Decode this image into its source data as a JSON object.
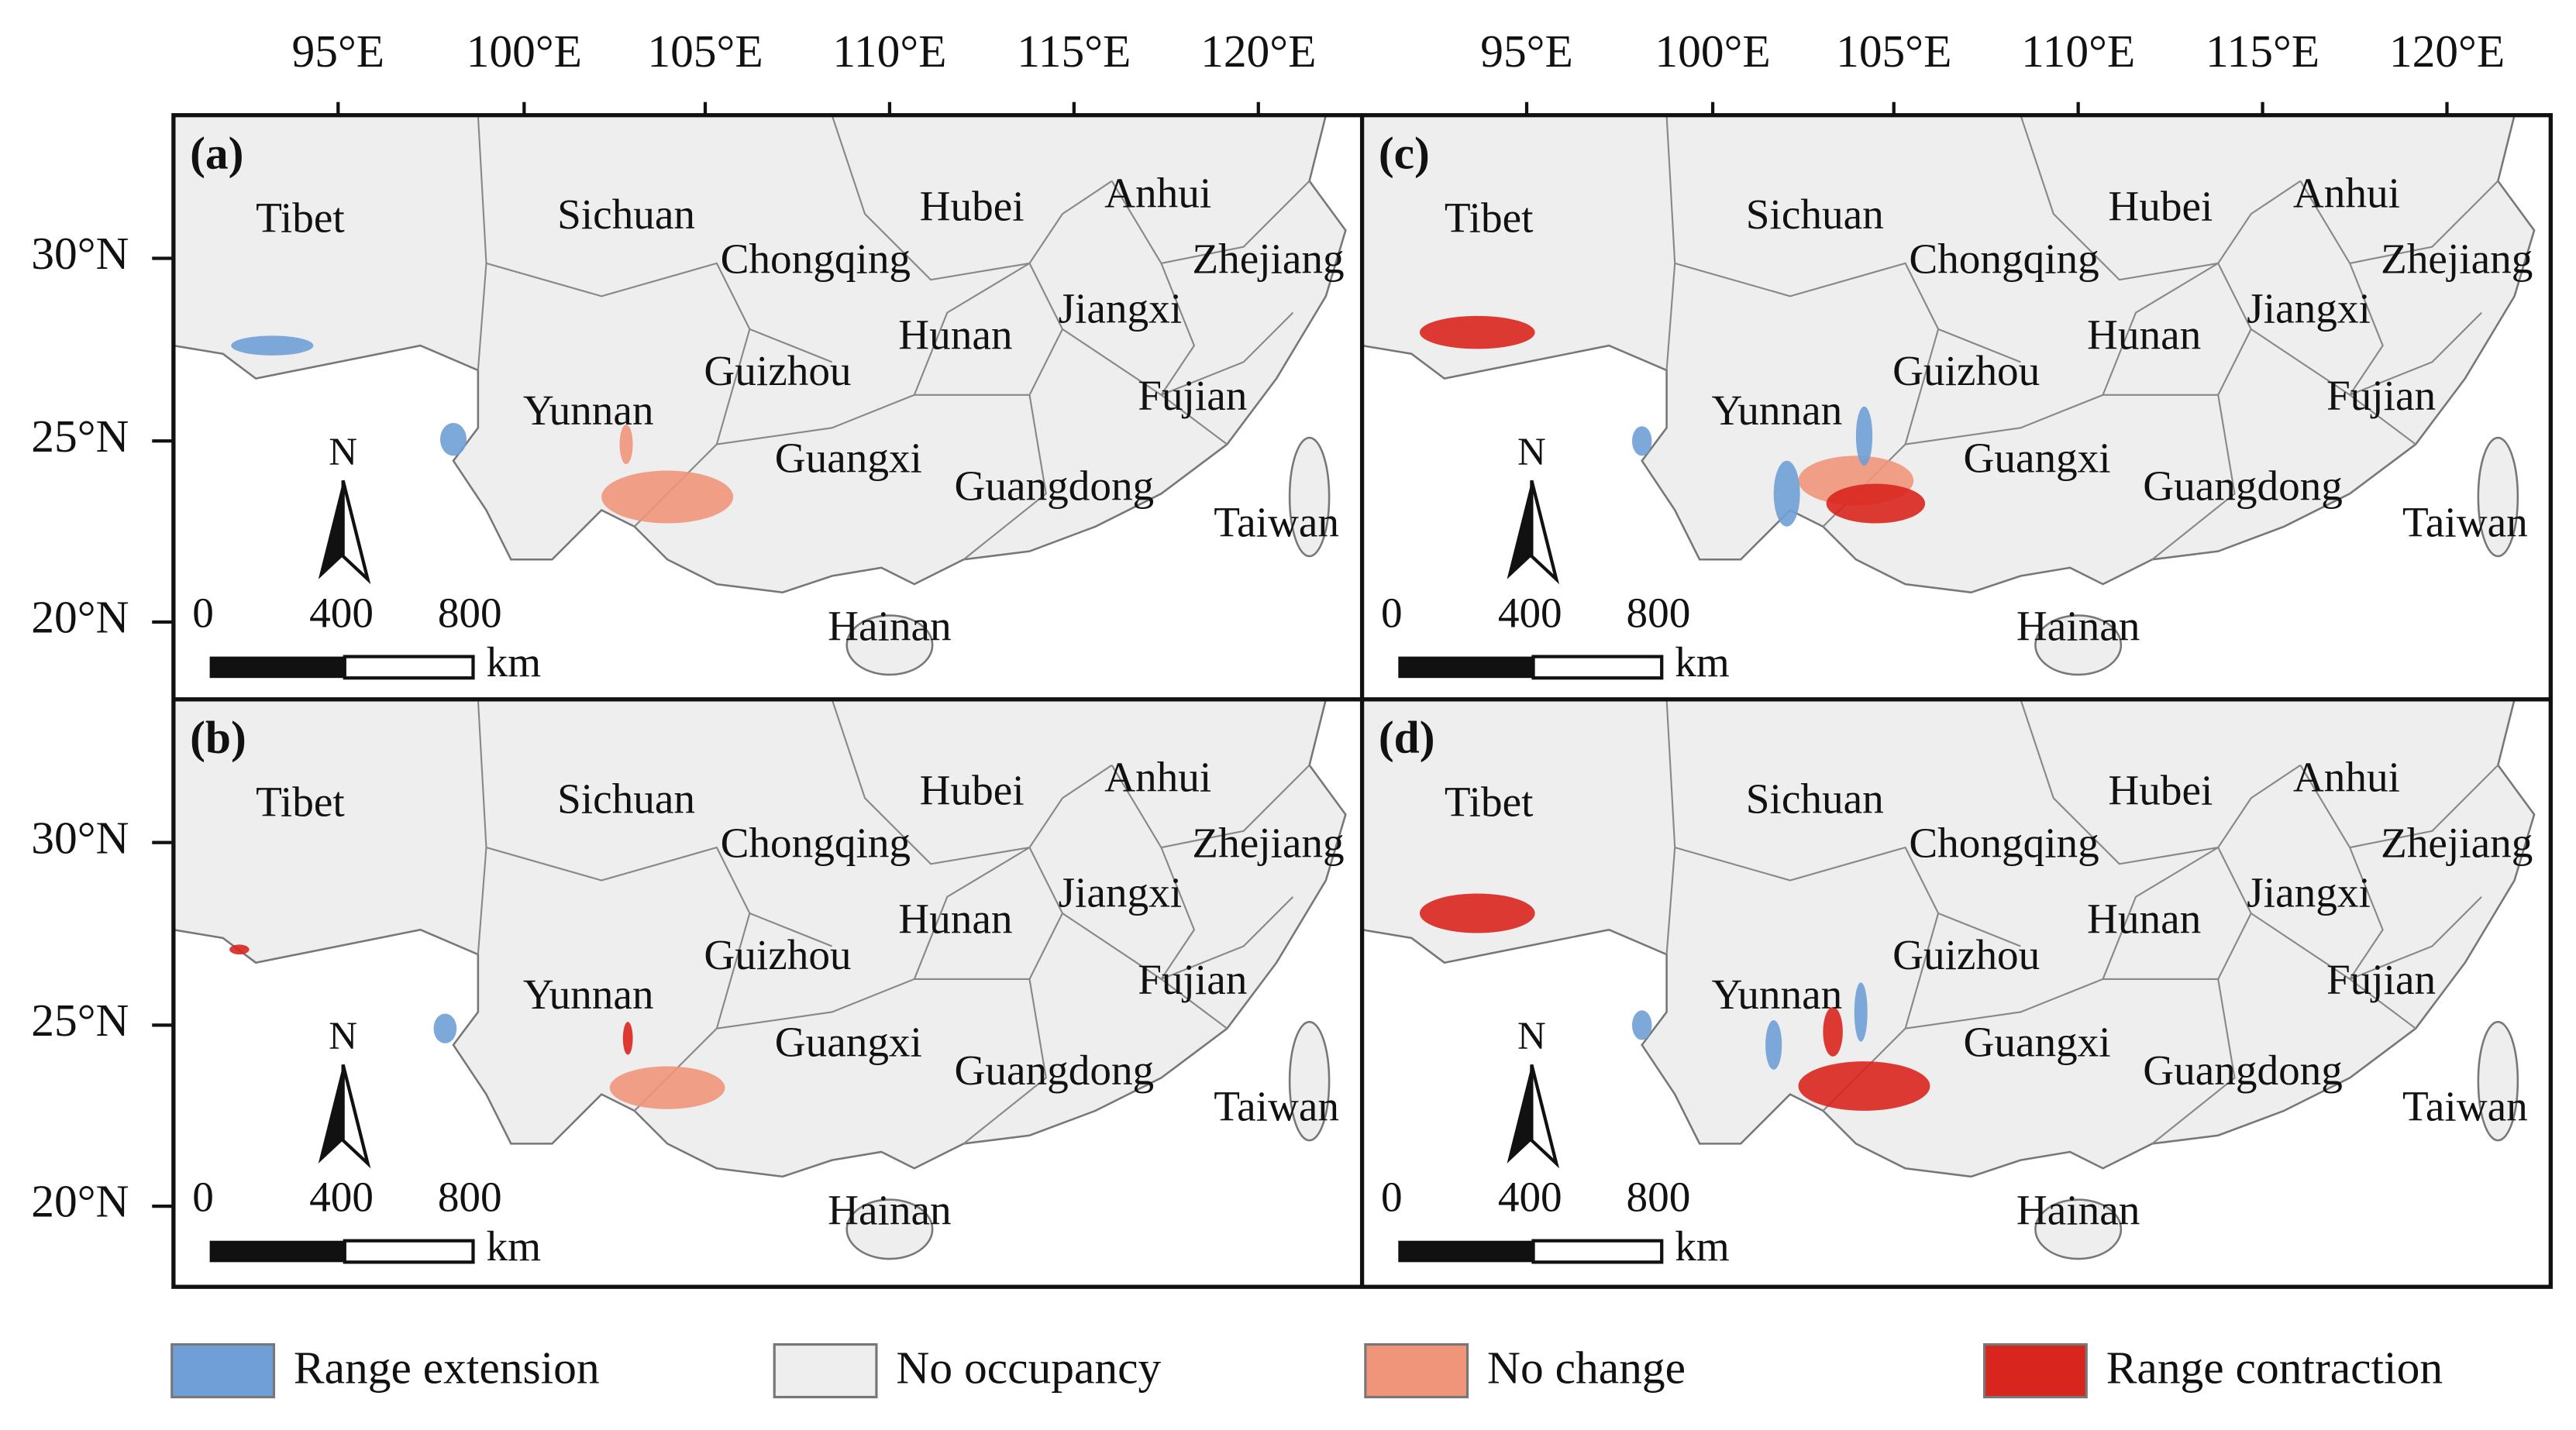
{
  "panels": [
    {
      "label": "(a)"
    },
    {
      "label": "(b)"
    },
    {
      "label": "(c)"
    },
    {
      "label": "(d)"
    }
  ],
  "provinces": [
    "Tibet",
    "Sichuan",
    "Hubei",
    "Anhui",
    "Chongqing",
    "Zhejiang",
    "Jiangxi",
    "Hunan",
    "Guizhou",
    "Fujian",
    "Yunnan",
    "Guangxi",
    "Guangdong",
    "Taiwan",
    "Hainan"
  ],
  "longitude_labels": [
    "95°E",
    "100°E",
    "105°E",
    "110°E",
    "115°E",
    "120°E"
  ],
  "latitude_labels": [
    "30°N",
    "25°N",
    "20°N"
  ],
  "north_label": "N",
  "scale_bar": {
    "ticks": [
      "0",
      "400",
      "800"
    ],
    "unit": "km"
  },
  "legend": [
    {
      "label": "Range extension",
      "color": "#6f9fd6"
    },
    {
      "label": "No occupancy",
      "color": "#eeeeee"
    },
    {
      "label": "No change",
      "color": "#f0957a"
    },
    {
      "label": "Range contraction",
      "color": "#d8251d"
    }
  ]
}
